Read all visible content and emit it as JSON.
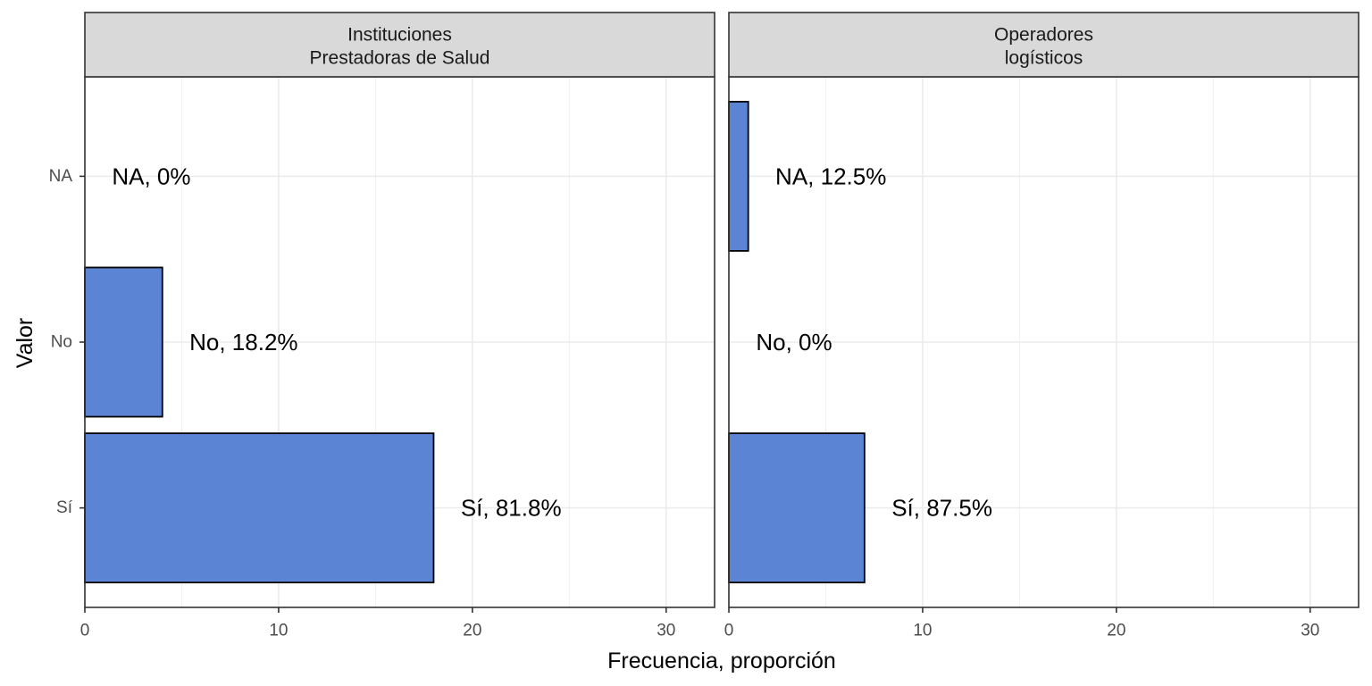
{
  "chart_data": {
    "type": "bar",
    "orientation": "horizontal",
    "xlabel": "Frecuencia, proporción",
    "ylabel": "Valor",
    "xlim": [
      0,
      32.5
    ],
    "x_ticks": [
      0,
      10,
      20,
      30
    ],
    "categories": [
      "NA",
      "No",
      "Sí"
    ],
    "grid": true,
    "bar_color": "#5b84d4",
    "panels": [
      {
        "title_lines": [
          "Instituciones",
          "Prestadoras de Salud"
        ],
        "values": [
          0,
          4,
          18
        ],
        "labels": [
          "NA, 0%",
          "No, 18.2%",
          "Sí, 81.8%"
        ]
      },
      {
        "title_lines": [
          "Operadores",
          "logísticos"
        ],
        "values": [
          1,
          0,
          7
        ],
        "labels": [
          "NA, 12.5%",
          "No, 0%",
          "Sí, 87.5%"
        ]
      }
    ]
  }
}
